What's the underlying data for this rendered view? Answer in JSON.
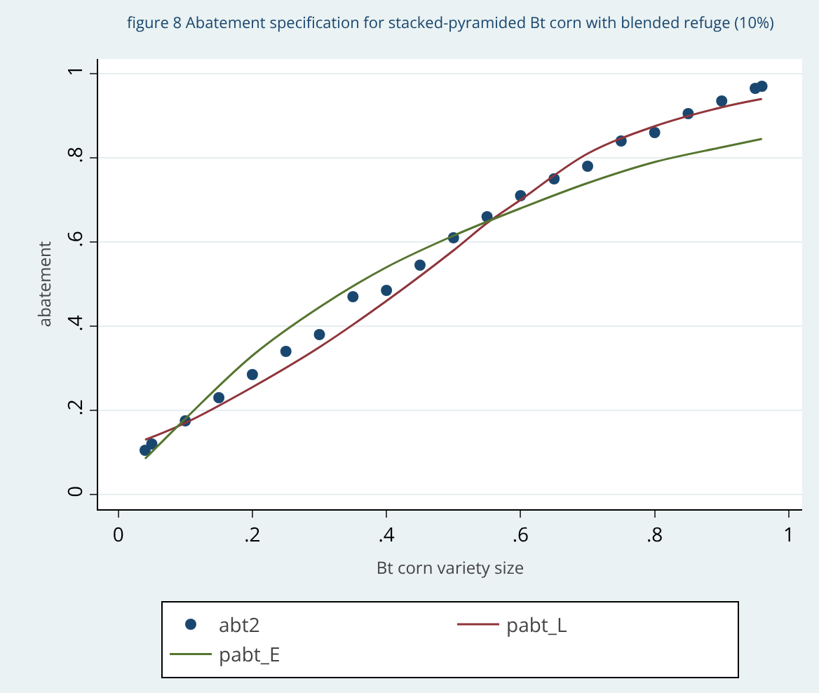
{
  "chart_data": {
    "type": "scatter",
    "title": "figure 8 Abatement specification for stacked-pyramided Bt corn with blended refuge (10%)",
    "xlabel": "Bt corn variety size",
    "ylabel": "abatement",
    "x": [
      0.04,
      0.05,
      0.1,
      0.15,
      0.2,
      0.25,
      0.3,
      0.35,
      0.4,
      0.45,
      0.5,
      0.55,
      0.6,
      0.65,
      0.7,
      0.75,
      0.8,
      0.85,
      0.9,
      0.95,
      0.96
    ],
    "series": [
      {
        "name": "abt2",
        "marker": "circle",
        "color": "#1a476f",
        "values": [
          0.105,
          0.12,
          0.175,
          0.23,
          0.285,
          0.34,
          0.38,
          0.47,
          0.485,
          0.545,
          0.61,
          0.66,
          0.71,
          0.75,
          0.78,
          0.84,
          0.86,
          0.905,
          0.935,
          0.965,
          0.97
        ]
      },
      {
        "name": "pabt_L",
        "type": "line",
        "color": "#90353b",
        "x": [
          0.04,
          0.1,
          0.2,
          0.3,
          0.4,
          0.5,
          0.55,
          0.6,
          0.7,
          0.8,
          0.9,
          0.96
        ],
        "values": [
          0.13,
          0.17,
          0.255,
          0.35,
          0.46,
          0.58,
          0.645,
          0.7,
          0.81,
          0.875,
          0.92,
          0.94
        ]
      },
      {
        "name": "pabt_E",
        "type": "line",
        "color": "#55752f",
        "x": [
          0.04,
          0.1,
          0.2,
          0.3,
          0.4,
          0.5,
          0.6,
          0.7,
          0.8,
          0.9,
          0.96
        ],
        "values": [
          0.085,
          0.18,
          0.33,
          0.445,
          0.54,
          0.615,
          0.68,
          0.74,
          0.79,
          0.825,
          0.845
        ]
      }
    ],
    "xlim": [
      -0.03,
      1.02
    ],
    "ylim": [
      -0.035,
      1.035
    ],
    "xticks": [
      0,
      {
        "value": 0.2,
        "label": ".2"
      },
      {
        "value": 0.4,
        "label": ".4"
      },
      {
        "value": 0.6,
        "label": ".6"
      },
      {
        "value": 0.8,
        "label": ".8"
      },
      1
    ],
    "yticks": [
      0,
      {
        "value": 0.2,
        "label": ".2"
      },
      {
        "value": 0.4,
        "label": ".4"
      },
      {
        "value": 0.6,
        "label": ".6"
      },
      {
        "value": 0.8,
        "label": ".8"
      },
      1
    ],
    "grid": "y",
    "legend": "bottom",
    "line_style": "solid"
  }
}
